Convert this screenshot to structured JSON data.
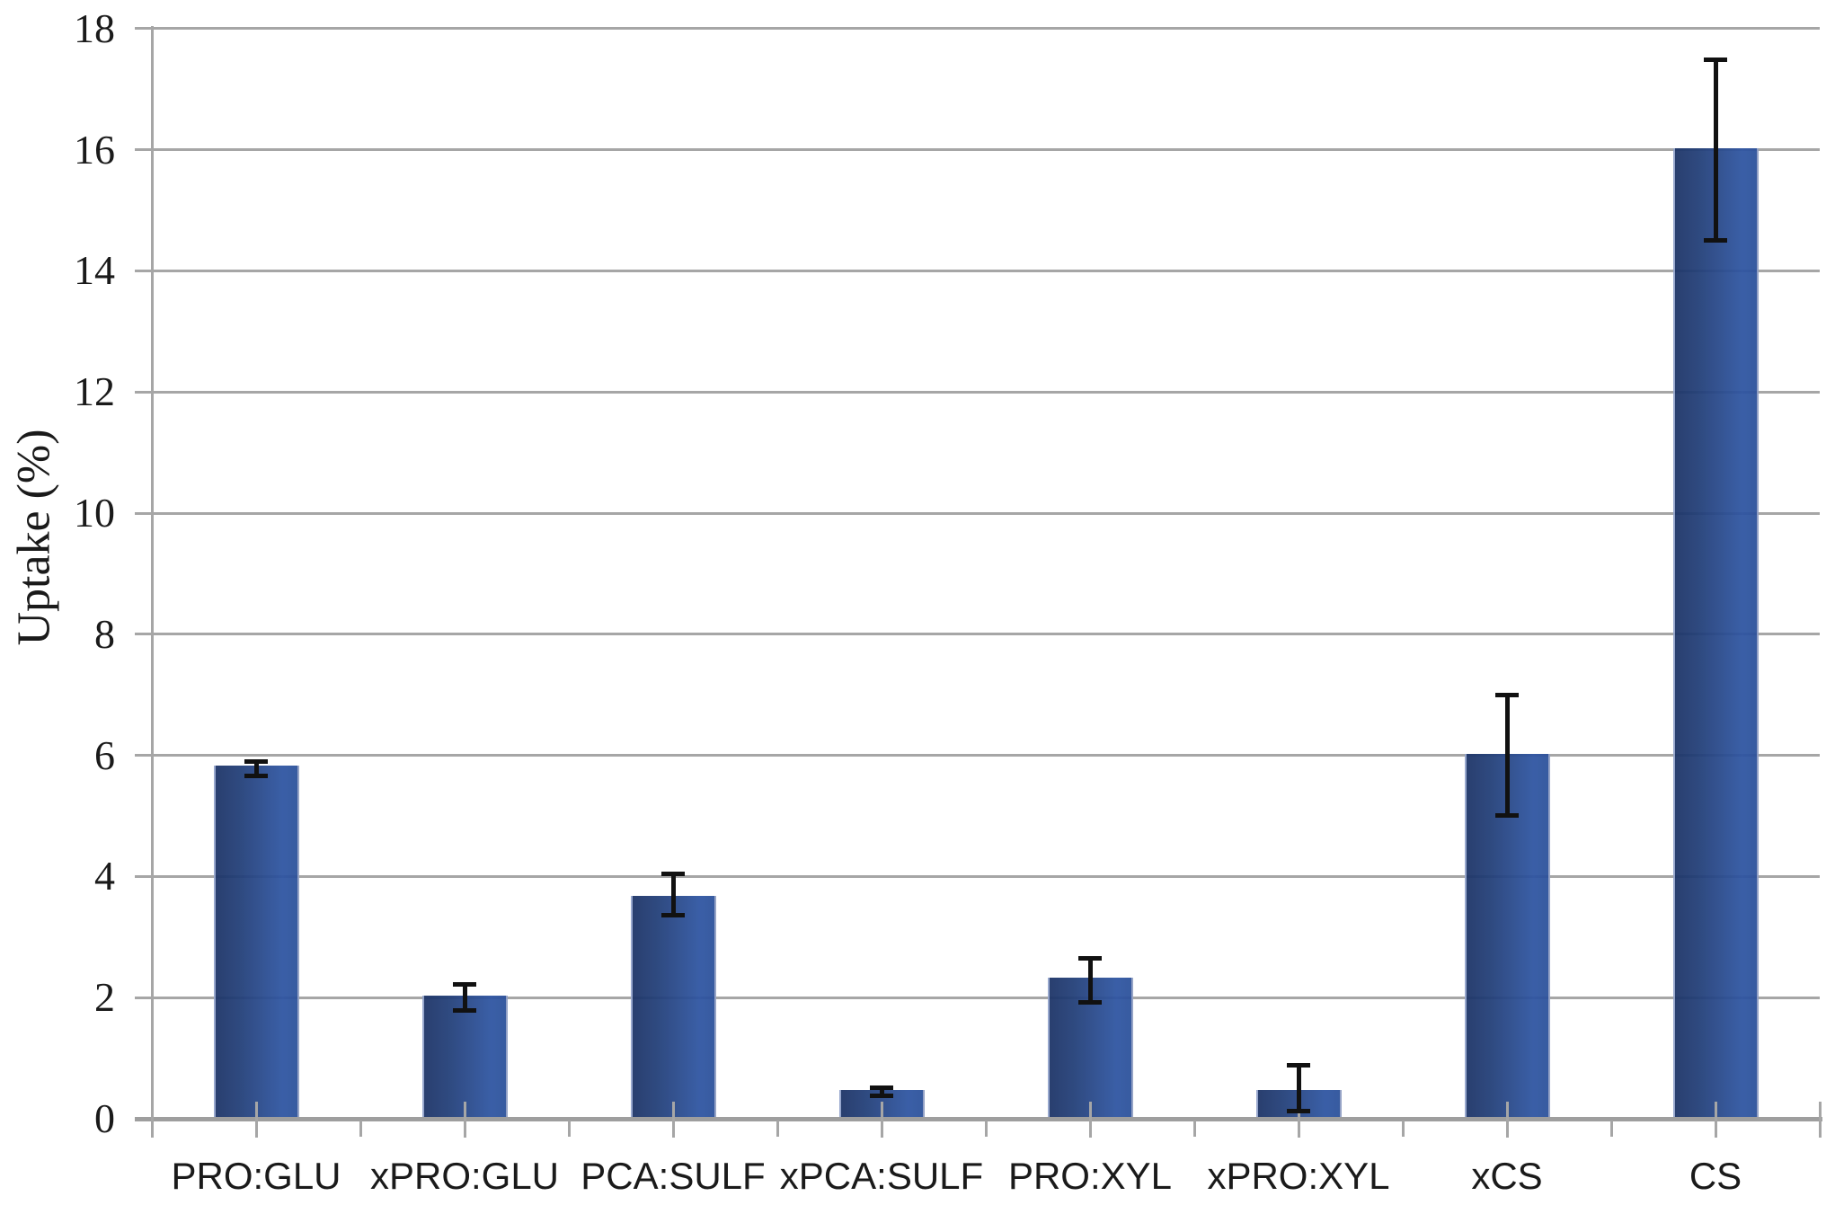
{
  "page": {
    "background": "#ffffff"
  },
  "chart_data": {
    "type": "bar",
    "title": "",
    "xlabel": "",
    "ylabel": "Uptake (%)",
    "ylim": [
      0,
      18
    ],
    "ytick_step": 2,
    "yticks": [
      0,
      2,
      4,
      6,
      8,
      10,
      12,
      14,
      16,
      18
    ],
    "grid": "horizontal gridlines every 2 units, drawn faintly across bars",
    "legend_position": "none",
    "categories": [
      "PRO:GLU",
      "xPRO:GLU",
      "PCA:SULF",
      "xPCA:SULF",
      "PRO:XYL",
      "xPRO:XYL",
      "xCS",
      "CS"
    ],
    "series": [
      {
        "name": "Uptake (%)",
        "values": [
          5.8,
          2.0,
          3.65,
          0.45,
          2.3,
          0.45,
          6.0,
          16.0
        ],
        "error_plus": [
          0.11,
          0.22,
          0.4,
          0.07,
          0.35,
          0.44,
          1.0,
          1.5
        ],
        "error_minus": [
          0.15,
          0.22,
          0.3,
          0.08,
          0.38,
          0.33,
          1.0,
          1.5
        ]
      }
    ],
    "style": {
      "bar_color_dark": "#1c3467",
      "bar_color_light": "#2e55a2",
      "bar_edge_highlight": "#a5b2d4",
      "gridline_color": "#a6a6a6",
      "axis_color": "#9e9e9e",
      "error_bar_color": "#111111",
      "text_color": "#1a1a1a"
    }
  }
}
